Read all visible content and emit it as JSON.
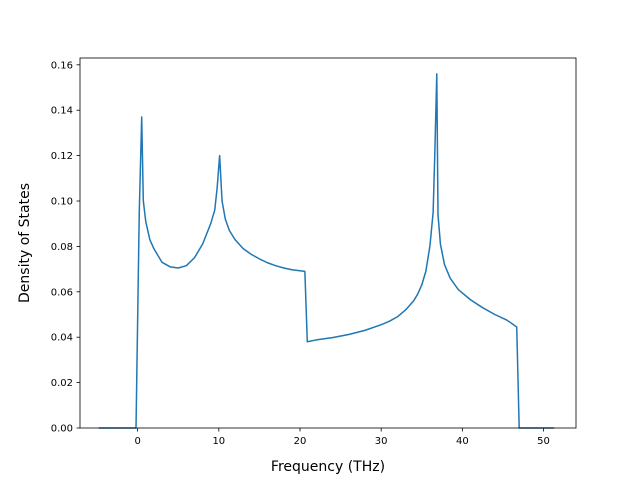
{
  "chart_data": {
    "type": "line",
    "title": "",
    "xlabel": "Frequency (THz)",
    "ylabel": "Density of States",
    "xlim": [
      -7.1,
      54.0
    ],
    "ylim": [
      0.0,
      0.163
    ],
    "x_ticks": [
      0,
      10,
      20,
      30,
      40,
      50
    ],
    "y_ticks": [
      0.0,
      0.02,
      0.04,
      0.06,
      0.08,
      0.1,
      0.12,
      0.14,
      0.16
    ],
    "x_tick_labels": [
      "0",
      "10",
      "20",
      "30",
      "40",
      "50"
    ],
    "y_tick_labels": [
      "0.00",
      "0.02",
      "0.04",
      "0.06",
      "0.08",
      "0.10",
      "0.12",
      "0.14",
      "0.16"
    ],
    "grid": false,
    "legend": "none",
    "colors": {
      "line": "#1f77b4",
      "axes": "#000000"
    },
    "series": [
      {
        "x": [
          -4.8,
          -0.2,
          0.2,
          0.5,
          0.7,
          1.0,
          1.5,
          2.0,
          2.5,
          3.0,
          4.0,
          5.0,
          6.0,
          7.0,
          8.0,
          9.0,
          9.5,
          9.8,
          10.1,
          10.4,
          10.8,
          11.3,
          12.0,
          13.0,
          14.0,
          15.0,
          16.0,
          17.0,
          18.0,
          19.0,
          20.6,
          20.9,
          22.0,
          24.0,
          26.0,
          28.0,
          30.0,
          31.0,
          32.0,
          33.0,
          34.0,
          34.5,
          35.0,
          35.5,
          36.0,
          36.4,
          36.6,
          36.85,
          37.0,
          37.3,
          37.8,
          38.5,
          39.5,
          41.0,
          42.5,
          44.0,
          45.5,
          46.7,
          47.0,
          51.3
        ],
        "y": [
          0.0,
          0.0,
          0.095,
          0.137,
          0.1,
          0.091,
          0.083,
          0.079,
          0.076,
          0.073,
          0.071,
          0.0705,
          0.0715,
          0.075,
          0.081,
          0.09,
          0.096,
          0.106,
          0.12,
          0.1,
          0.092,
          0.087,
          0.083,
          0.079,
          0.0765,
          0.0745,
          0.0728,
          0.0715,
          0.0705,
          0.0697,
          0.069,
          0.038,
          0.0388,
          0.0398,
          0.0412,
          0.043,
          0.0455,
          0.047,
          0.049,
          0.052,
          0.056,
          0.059,
          0.063,
          0.069,
          0.08,
          0.095,
          0.12,
          0.156,
          0.094,
          0.081,
          0.072,
          0.066,
          0.061,
          0.0565,
          0.053,
          0.05,
          0.0475,
          0.0445,
          0.0,
          0.0
        ]
      }
    ]
  }
}
